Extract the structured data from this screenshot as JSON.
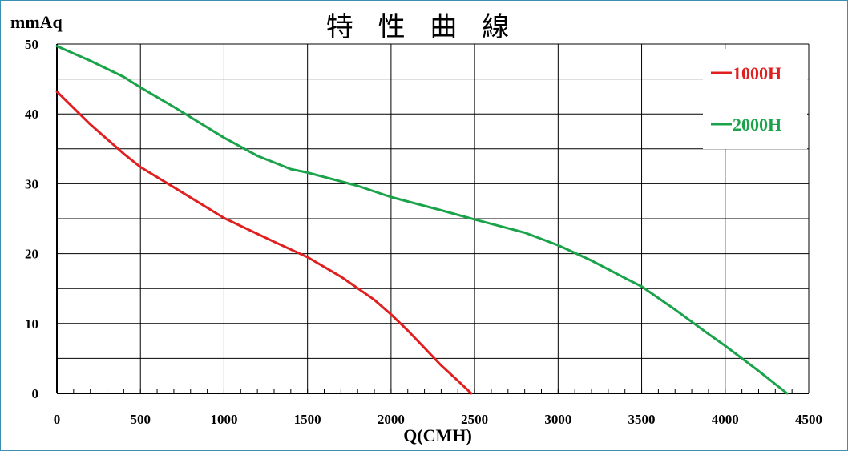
{
  "chart_data": {
    "type": "line",
    "title": "特 性 曲 線",
    "xlabel": "Q(CMH)",
    "ylabel": "mmAq",
    "xlim": [
      0,
      4500
    ],
    "ylim": [
      0,
      50
    ],
    "x_ticks": [
      0,
      500,
      1000,
      1500,
      2000,
      2500,
      3000,
      3500,
      4000,
      4500
    ],
    "x_tick_labels": [
      "0",
      "500",
      "1000",
      "1500",
      "2000",
      "2500",
      "3000",
      "3500",
      "4000",
      "4500"
    ],
    "y_ticks": [
      0,
      10,
      20,
      30,
      40,
      50
    ],
    "y_tick_labels": [
      "0",
      "10",
      "20",
      "30",
      "40",
      "50"
    ],
    "grid": true,
    "legend_position": "top-right",
    "series": [
      {
        "name": "1000H",
        "color": "#e02020",
        "points": [
          [
            0,
            43.2
          ],
          [
            200,
            38.5
          ],
          [
            400,
            34.3
          ],
          [
            500,
            32.4
          ],
          [
            700,
            29.5
          ],
          [
            1000,
            25.1
          ],
          [
            1300,
            21.7
          ],
          [
            1500,
            19.5
          ],
          [
            1700,
            16.7
          ],
          [
            1900,
            13.4
          ],
          [
            2000,
            11.3
          ],
          [
            2100,
            9.0
          ],
          [
            2200,
            6.5
          ],
          [
            2300,
            4.0
          ],
          [
            2400,
            1.8
          ],
          [
            2480,
            0
          ]
        ]
      },
      {
        "name": "2000H",
        "color": "#1aa34a",
        "points": [
          [
            0,
            49.7
          ],
          [
            200,
            47.6
          ],
          [
            400,
            45.3
          ],
          [
            500,
            43.8
          ],
          [
            700,
            41.0
          ],
          [
            1000,
            36.6
          ],
          [
            1200,
            34.0
          ],
          [
            1400,
            32.1
          ],
          [
            1500,
            31.6
          ],
          [
            1800,
            29.7
          ],
          [
            2000,
            28.1
          ],
          [
            2300,
            26.2
          ],
          [
            2500,
            24.9
          ],
          [
            2800,
            23.0
          ],
          [
            3000,
            21.2
          ],
          [
            3200,
            19.0
          ],
          [
            3400,
            16.5
          ],
          [
            3500,
            15.3
          ],
          [
            3700,
            12.0
          ],
          [
            3900,
            8.5
          ],
          [
            4000,
            6.8
          ],
          [
            4200,
            3.2
          ],
          [
            4370,
            0
          ]
        ]
      }
    ]
  }
}
